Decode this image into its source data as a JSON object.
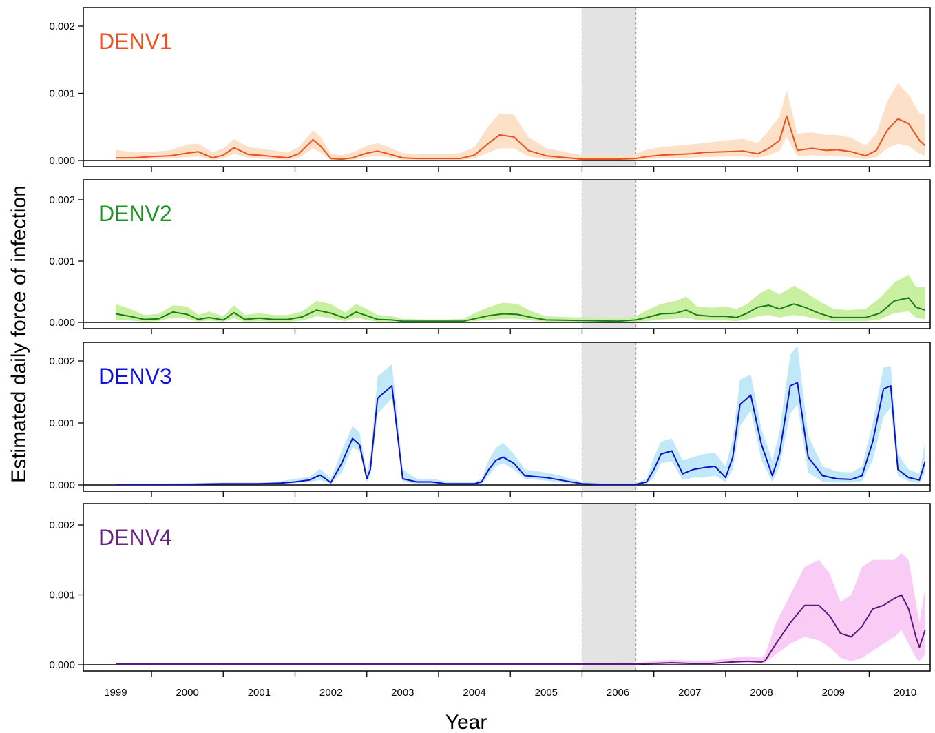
{
  "chart_data": {
    "type": "area",
    "ylabel": "Estimated daily force of infection",
    "xlabel": "Year",
    "x_tick_labels": [
      "1999",
      "2000",
      "2001",
      "2002",
      "2003",
      "2004",
      "2005",
      "2006",
      "2007",
      "2008",
      "2009",
      "2010"
    ],
    "x_range": [
      1998.55,
      2010.35
    ],
    "ylim": [
      0,
      0.0022
    ],
    "y_ticks": [
      "0.000",
      "0.001",
      "0.002"
    ],
    "shaded_period": [
      2005.5,
      2006.25
    ],
    "grid": false,
    "panels": [
      {
        "label": "DENV1",
        "label_color": "#f0501e",
        "line_color": "#e8521c",
        "band_color": "#fde0c8",
        "series": {
          "x": [
            1999.0,
            1999.25,
            1999.5,
            1999.75,
            2000.0,
            2000.15,
            2000.35,
            2000.5,
            2000.65,
            2000.85,
            2001.0,
            2001.2,
            2001.4,
            2001.55,
            2001.75,
            2001.85,
            2002.0,
            2002.15,
            2002.3,
            2002.5,
            2002.65,
            2002.8,
            2003.0,
            2003.2,
            2003.4,
            2003.6,
            2003.8,
            2004.0,
            2004.2,
            2004.35,
            2004.55,
            2004.75,
            2005.0,
            2005.3,
            2005.5,
            2005.75,
            2006.0,
            2006.25,
            2006.4,
            2006.6,
            2006.8,
            2007.0,
            2007.2,
            2007.5,
            2007.75,
            2007.95,
            2008.1,
            2008.25,
            2008.35,
            2008.5,
            2008.7,
            2008.9,
            2009.05,
            2009.25,
            2009.45,
            2009.6,
            2009.75,
            2009.9,
            2010.05,
            2010.2,
            2010.28
          ],
          "mean": [
            4e-05,
            4e-05,
            6e-05,
            7e-05,
            0.00011,
            0.00013,
            4e-05,
            8e-05,
            0.00019,
            9e-05,
            8e-05,
            6e-05,
            4e-05,
            0.0001,
            0.00031,
            0.00022,
            3e-05,
            2e-05,
            4e-05,
            0.00011,
            0.00014,
            0.0001,
            4e-05,
            3e-05,
            3e-05,
            3e-05,
            3e-05,
            8e-05,
            0.00026,
            0.00038,
            0.00035,
            0.00015,
            7e-05,
            4e-05,
            2e-05,
            2e-05,
            2e-05,
            3e-05,
            6e-05,
            8e-05,
            9e-05,
            0.0001,
            0.00012,
            0.00013,
            0.00014,
            0.0001,
            0.00018,
            0.0003,
            0.00066,
            0.00015,
            0.00018,
            0.00015,
            0.00016,
            0.00013,
            7e-05,
            0.00015,
            0.00045,
            0.00062,
            0.00055,
            0.0003,
            0.00022
          ],
          "lower": [
            1e-05,
            1e-05,
            2e-05,
            3e-05,
            5e-05,
            6e-05,
            1e-05,
            3e-05,
            0.0001,
            4e-05,
            3e-05,
            2e-05,
            1e-05,
            4e-05,
            0.00018,
            0.00012,
            1e-05,
            1e-05,
            1e-05,
            5e-05,
            7e-05,
            5e-05,
            1e-05,
            1e-05,
            1e-05,
            1e-05,
            1e-05,
            3e-05,
            0.00012,
            0.00018,
            0.00018,
            6e-05,
            2e-05,
            1e-05,
            1e-05,
            1e-05,
            1e-05,
            1e-05,
            2e-05,
            3e-05,
            4e-05,
            4e-05,
            5e-05,
            6e-05,
            6e-05,
            4e-05,
            8e-05,
            0.00014,
            0.00035,
            6e-05,
            8e-05,
            6e-05,
            7e-05,
            5e-05,
            2e-05,
            5e-05,
            0.00018,
            0.00025,
            0.00022,
            0.0001,
            7e-05
          ],
          "upper": [
            0.00016,
            0.00012,
            0.00013,
            0.00015,
            0.00024,
            0.00025,
            0.00012,
            0.00018,
            0.00032,
            0.0002,
            0.00018,
            0.00015,
            0.00012,
            0.0002,
            0.00045,
            0.00036,
            0.0001,
            8e-05,
            0.00012,
            0.00022,
            0.00026,
            0.0002,
            0.00011,
            9e-05,
            0.0001,
            0.0001,
            0.00011,
            0.0002,
            0.00052,
            0.0007,
            0.00068,
            0.00035,
            0.00018,
            0.00012,
            8e-05,
            8e-05,
            8e-05,
            0.0001,
            0.00016,
            0.0002,
            0.00022,
            0.00024,
            0.00026,
            0.0003,
            0.00032,
            0.00026,
            0.00045,
            0.00065,
            0.00105,
            0.0004,
            0.00042,
            0.00038,
            0.00038,
            0.00034,
            0.00022,
            0.0004,
            0.00088,
            0.00115,
            0.00098,
            0.0007,
            0.00068
          ]
        }
      },
      {
        "label": "DENV2",
        "label_color": "#1e9122",
        "line_color": "#1a7d1a",
        "band_color": "#c8f0a0",
        "series": {
          "x": [
            1999.0,
            1999.2,
            1999.4,
            1999.6,
            1999.8,
            2000.0,
            2000.15,
            2000.3,
            2000.5,
            2000.65,
            2000.8,
            2001.0,
            2001.2,
            2001.4,
            2001.6,
            2001.8,
            2002.0,
            2002.2,
            2002.35,
            2002.5,
            2002.65,
            2002.85,
            2003.0,
            2003.3,
            2003.6,
            2003.85,
            2004.0,
            2004.2,
            2004.4,
            2004.6,
            2004.8,
            2005.0,
            2005.5,
            2006.0,
            2006.25,
            2006.4,
            2006.6,
            2006.8,
            2006.95,
            2007.1,
            2007.3,
            2007.5,
            2007.65,
            2007.8,
            2007.95,
            2008.1,
            2008.25,
            2008.45,
            2008.6,
            2008.8,
            2009.0,
            2009.2,
            2009.45,
            2009.65,
            2009.85,
            2010.05,
            2010.15,
            2010.28
          ],
          "mean": [
            0.00014,
            0.0001,
            5e-05,
            6e-05,
            0.00017,
            0.00013,
            5e-05,
            8e-05,
            4e-05,
            0.00016,
            5e-05,
            7e-05,
            5e-05,
            5e-05,
            9e-05,
            0.0002,
            0.00015,
            7e-05,
            0.00017,
            0.00011,
            5e-05,
            4e-05,
            2e-05,
            2e-05,
            2e-05,
            2e-05,
            6e-05,
            0.00011,
            0.00014,
            0.00013,
            8e-05,
            4e-05,
            3e-05,
            2e-05,
            4e-05,
            8e-05,
            0.00014,
            0.00015,
            0.0002,
            0.00012,
            0.0001,
            0.0001,
            8e-05,
            0.00015,
            0.00025,
            0.00028,
            0.00022,
            0.0003,
            0.00025,
            0.00015,
            8e-05,
            8e-05,
            8e-05,
            0.00015,
            0.00035,
            0.0004,
            0.00025,
            0.0002
          ],
          "lower": [
            4e-05,
            3e-05,
            1e-05,
            2e-05,
            8e-05,
            6e-05,
            1e-05,
            3e-05,
            1e-05,
            7e-05,
            1e-05,
            2e-05,
            1e-05,
            1e-05,
            3e-05,
            0.0001,
            7e-05,
            2e-05,
            8e-05,
            4e-05,
            1e-05,
            1e-05,
            1e-05,
            1e-05,
            1e-05,
            1e-05,
            2e-05,
            4e-05,
            6e-05,
            6e-05,
            3e-05,
            1e-05,
            1e-05,
            1e-05,
            1e-05,
            2e-05,
            5e-05,
            6e-05,
            8e-05,
            4e-05,
            3e-05,
            3e-05,
            2e-05,
            5e-05,
            0.0001,
            0.00012,
            8e-05,
            0.00012,
            0.0001,
            5e-05,
            2e-05,
            2e-05,
            2e-05,
            5e-05,
            0.00015,
            0.00018,
            8e-05,
            5e-05
          ],
          "upper": [
            0.0003,
            0.00022,
            0.00012,
            0.00014,
            0.00028,
            0.00026,
            0.00012,
            0.00018,
            0.0001,
            0.00028,
            0.00012,
            0.00015,
            0.00012,
            0.00012,
            0.00018,
            0.00035,
            0.0003,
            0.00016,
            0.0003,
            0.00022,
            0.00012,
            0.0001,
            6e-05,
            5e-05,
            5e-05,
            6e-05,
            0.00015,
            0.00025,
            0.00032,
            0.0003,
            0.00018,
            0.0001,
            8e-05,
            7e-05,
            0.0001,
            0.0002,
            0.0003,
            0.00035,
            0.00042,
            0.00026,
            0.00024,
            0.00026,
            0.00022,
            0.0003,
            0.00045,
            0.00055,
            0.00045,
            0.0006,
            0.0005,
            0.00035,
            0.00022,
            0.0002,
            0.00022,
            0.0004,
            0.00065,
            0.00078,
            0.00058,
            0.00058
          ]
        }
      },
      {
        "label": "DENV3",
        "label_color": "#1010e0",
        "line_color": "#1010c8",
        "band_color": "#c0e8f8",
        "series": {
          "x": [
            1999.0,
            1999.5,
            2000.0,
            2000.5,
            2001.0,
            2001.3,
            2001.5,
            2001.7,
            2001.85,
            2002.0,
            2002.15,
            2002.3,
            2002.4,
            2002.5,
            2002.55,
            2002.65,
            2002.85,
            2003.0,
            2003.2,
            2003.4,
            2003.6,
            2003.8,
            2004.0,
            2004.1,
            2004.2,
            2004.3,
            2004.4,
            2004.55,
            2004.7,
            2005.0,
            2005.2,
            2005.5,
            2005.8,
            2006.0,
            2006.25,
            2006.4,
            2006.5,
            2006.6,
            2006.75,
            2006.9,
            2007.05,
            2007.2,
            2007.35,
            2007.5,
            2007.6,
            2007.7,
            2007.85,
            2008.0,
            2008.15,
            2008.25,
            2008.4,
            2008.5,
            2008.65,
            2008.85,
            2009.05,
            2009.25,
            2009.4,
            2009.55,
            2009.7,
            2009.8,
            2009.9,
            2010.05,
            2010.2,
            2010.28
          ],
          "mean": [
            1e-05,
            1e-05,
            1e-05,
            2e-05,
            2e-05,
            3e-05,
            5e-05,
            8e-05,
            0.00016,
            4e-05,
            0.00035,
            0.00075,
            0.00065,
            0.0001,
            0.00025,
            0.0014,
            0.0016,
            0.0001,
            5e-05,
            5e-05,
            2e-05,
            2e-05,
            2e-05,
            5e-05,
            0.00025,
            0.0004,
            0.00045,
            0.00035,
            0.00015,
            0.00012,
            8e-05,
            2e-05,
            1e-05,
            1e-05,
            1e-05,
            5e-05,
            0.00025,
            0.0005,
            0.00055,
            0.00018,
            0.00025,
            0.00028,
            0.0003,
            0.00012,
            0.00045,
            0.0013,
            0.00145,
            0.00065,
            0.00015,
            0.0005,
            0.0016,
            0.00165,
            0.00045,
            0.00015,
            0.0001,
            9e-05,
            0.00015,
            0.0007,
            0.00155,
            0.0016,
            0.00025,
            0.00012,
            8e-05,
            0.00038
          ],
          "lower": [
            0.0,
            0.0,
            0.0,
            1e-05,
            1e-05,
            2e-05,
            3e-05,
            5e-05,
            8e-05,
            2e-05,
            0.0002,
            0.0006,
            0.00055,
            5e-05,
            0.00015,
            0.00115,
            0.0014,
            5e-05,
            2e-05,
            2e-05,
            1e-05,
            1e-05,
            1e-05,
            2e-05,
            0.00015,
            0.0003,
            0.00035,
            0.00025,
            0.0001,
            7e-05,
            4e-05,
            1e-05,
            0.0,
            0.0,
            0.0,
            2e-05,
            0.00012,
            0.00035,
            0.00038,
            8e-05,
            0.00012,
            0.00012,
            0.00015,
            5e-05,
            0.00025,
            0.00095,
            0.0012,
            0.0004,
            5e-05,
            0.0003,
            0.00115,
            0.0013,
            0.0002,
            5e-05,
            4e-05,
            4e-05,
            6e-05,
            0.0004,
            0.0011,
            0.00125,
            0.00015,
            6e-05,
            3e-05,
            0.0002
          ],
          "upper": [
            2e-05,
            2e-05,
            3e-05,
            4e-05,
            4e-05,
            6e-05,
            0.0001,
            0.00013,
            0.00026,
            0.0001,
            0.00055,
            0.00095,
            0.00085,
            0.0002,
            0.00045,
            0.00175,
            0.00195,
            0.00025,
            0.0001,
            0.0001,
            6e-05,
            5e-05,
            5e-05,
            0.0001,
            0.0004,
            0.0006,
            0.00068,
            0.0005,
            0.00025,
            0.0002,
            0.00015,
            5e-05,
            3e-05,
            3e-05,
            3e-05,
            0.0001,
            0.00045,
            0.0007,
            0.00075,
            0.0004,
            0.00045,
            0.0005,
            0.00052,
            0.0003,
            0.00075,
            0.0017,
            0.00178,
            0.0009,
            0.0004,
            0.00085,
            0.0021,
            0.00225,
            0.0008,
            0.0003,
            0.00022,
            0.0002,
            0.0003,
            0.001,
            0.0019,
            0.00192,
            0.0005,
            0.00025,
            0.00018,
            0.0007
          ]
        }
      },
      {
        "label": "DENV4",
        "label_color": "#6a2289",
        "line_color": "#5a1a7a",
        "band_color": "#f8ccf4",
        "series": {
          "x": [
            1999.0,
            2000.0,
            2001.0,
            2002.0,
            2003.0,
            2004.0,
            2005.0,
            2005.5,
            2006.0,
            2006.25,
            2006.5,
            2006.75,
            2007.0,
            2007.3,
            2007.6,
            2007.8,
            2008.0,
            2008.05,
            2008.2,
            2008.4,
            2008.6,
            2008.8,
            2008.95,
            2009.1,
            2009.25,
            2009.4,
            2009.55,
            2009.7,
            2009.85,
            2009.95,
            2010.05,
            2010.15,
            2010.2,
            2010.28
          ],
          "mean": [
            1e-05,
            1e-05,
            1e-05,
            1e-05,
            1e-05,
            1e-05,
            1e-05,
            1e-05,
            1e-05,
            1e-05,
            2e-05,
            3e-05,
            2e-05,
            2e-05,
            4e-05,
            5e-05,
            4e-05,
            6e-05,
            0.0003,
            0.0006,
            0.00085,
            0.00085,
            0.0007,
            0.00045,
            0.0004,
            0.00055,
            0.0008,
            0.00085,
            0.00095,
            0.001,
            0.0008,
            0.0004,
            0.00025,
            0.0005
          ],
          "lower": [
            0.0,
            0.0,
            0.0,
            0.0,
            0.0,
            0.0,
            0.0,
            0.0,
            0.0,
            0.0,
            1e-05,
            1e-05,
            1e-05,
            1e-05,
            2e-05,
            2e-05,
            2e-05,
            3e-05,
            0.00015,
            0.0003,
            0.0004,
            0.00035,
            0.00025,
            0.0001,
            5e-05,
            0.0001,
            0.0002,
            0.0003,
            0.0004,
            0.0005,
            0.0003,
            0.0001,
            5e-05,
            0.00015
          ],
          "upper": [
            2e-05,
            2e-05,
            2e-05,
            2e-05,
            2e-05,
            2e-05,
            2e-05,
            2e-05,
            2e-05,
            3e-05,
            5e-05,
            7e-05,
            6e-05,
            6e-05,
            0.0001,
            0.00012,
            0.0001,
            0.00015,
            0.0006,
            0.001,
            0.0014,
            0.0015,
            0.0013,
            0.0009,
            0.001,
            0.0014,
            0.0015,
            0.0015,
            0.0015,
            0.0016,
            0.0015,
            0.0009,
            0.0006,
            0.0011
          ]
        }
      }
    ]
  }
}
